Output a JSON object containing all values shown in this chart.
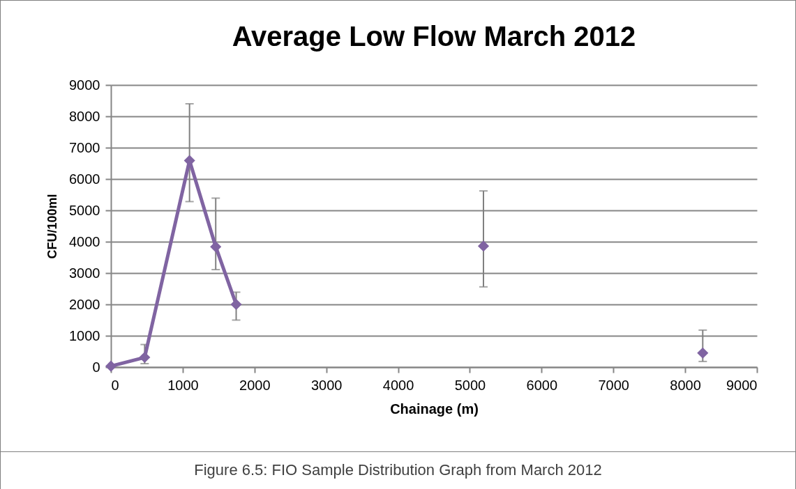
{
  "chart_data": {
    "type": "line",
    "title": "Average Low Flow March 2012",
    "xlabel": "Chainage (m)",
    "ylabel": "CFU/100ml",
    "xlim": [
      0,
      9000
    ],
    "xticks": [
      0,
      1000,
      2000,
      3000,
      4000,
      5000,
      6000,
      7000,
      8000,
      9000
    ],
    "ylim": [
      0,
      9000
    ],
    "yticks": [
      0,
      1000,
      2000,
      3000,
      4000,
      5000,
      6000,
      7000,
      8000,
      9000
    ],
    "grid": "y",
    "marker": "diamond",
    "line_style": "solid",
    "series": [
      {
        "color": "#8064a2",
        "x": [
          0,
          470,
          1095,
          1460,
          1745
        ],
        "values": [
          30,
          310,
          6590,
          3840,
          2000
        ],
        "errors": [
          null,
          [
            110,
            720
          ],
          [
            5280,
            8400
          ],
          [
            3110,
            5390
          ],
          [
            1500,
            2390
          ]
        ]
      },
      {
        "type": "scatter",
        "color": "#8064a2",
        "x": [
          5190,
          8245
        ],
        "values": [
          3860,
          450
        ],
        "errors": [
          [
            2560,
            5620
          ],
          [
            180,
            1180
          ]
        ]
      }
    ],
    "annotations": [
      "Figure 6.5: FIO Sample Distribution Graph from March 2012"
    ]
  }
}
